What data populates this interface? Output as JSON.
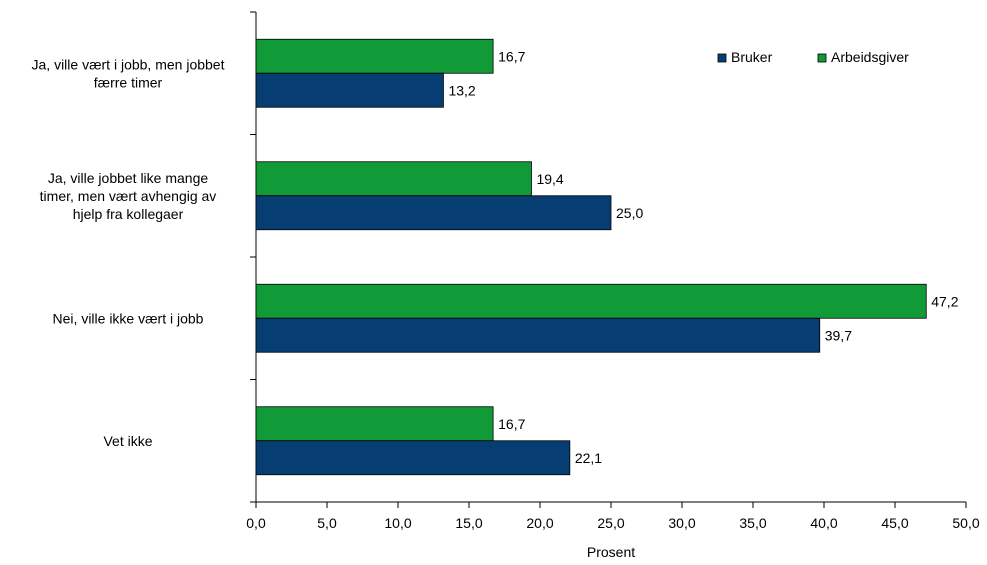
{
  "chart_data": {
    "type": "bar",
    "orientation": "horizontal",
    "categories": [
      [
        "Ja, ville vært i jobb, men jobbet",
        "færre timer"
      ],
      [
        "Ja, ville jobbet like mange",
        "timer, men vært avhengig av",
        "hjelp fra kollegaer"
      ],
      [
        "Nei, ville ikke vært i jobb"
      ],
      [
        "Vet ikke"
      ]
    ],
    "series": [
      {
        "name": "Arbeidsgiver",
        "color": "#109a38",
        "values": [
          16.7,
          19.4,
          47.2,
          16.7
        ],
        "labels": [
          "16,7",
          "19,4",
          "47,2",
          "16,7"
        ]
      },
      {
        "name": "Bruker",
        "color": "#063e73",
        "values": [
          13.2,
          25.0,
          39.7,
          22.1
        ],
        "labels": [
          "13,2",
          "25,0",
          "39,7",
          "22,1"
        ]
      }
    ],
    "legend_order": [
      "Bruker",
      "Arbeidsgiver"
    ],
    "legend_position": "top-right",
    "xlabel": "Prosent",
    "xlim": [
      0,
      50
    ],
    "xticks": [
      0,
      5,
      10,
      15,
      20,
      25,
      30,
      35,
      40,
      45,
      50
    ],
    "xtick_labels": [
      "0,0",
      "5,0",
      "10,0",
      "15,0",
      "20,0",
      "25,0",
      "30,0",
      "35,0",
      "40,0",
      "45,0",
      "50,0"
    ],
    "grid": false
  }
}
